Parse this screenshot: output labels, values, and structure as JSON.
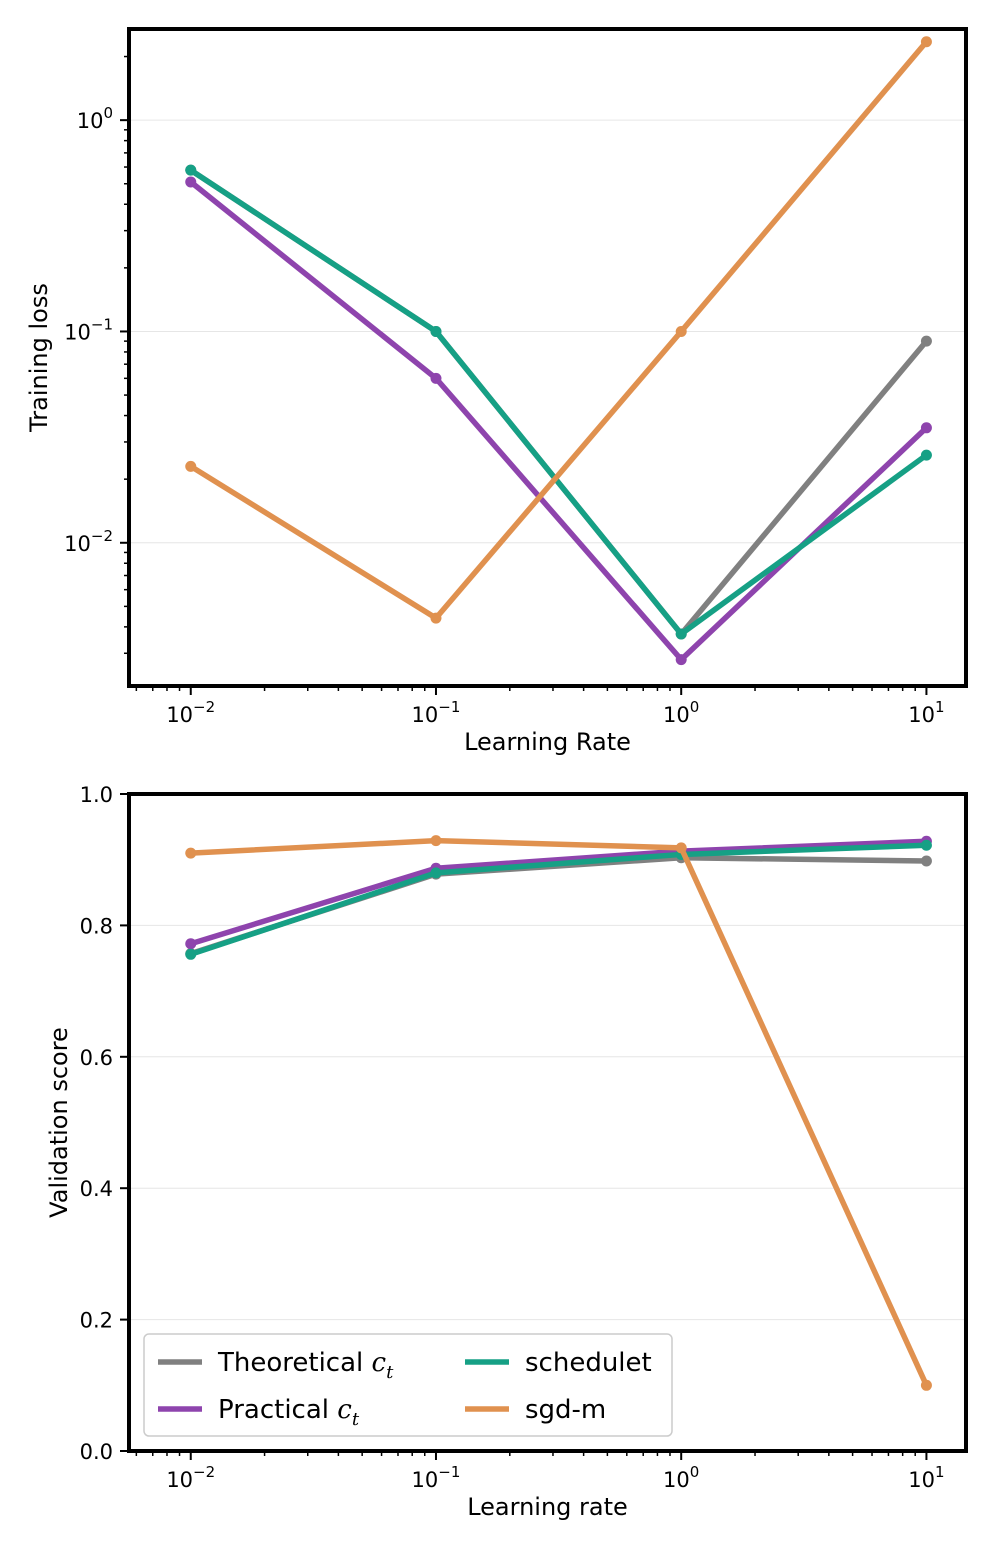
{
  "chart_data": [
    {
      "type": "line",
      "xscale": "log",
      "yscale": "log",
      "xlabel": "Learning Rate",
      "ylabel": "Training loss",
      "x": [
        0.01,
        0.1,
        1,
        10
      ],
      "xlim": [
        0.0056,
        14.5
      ],
      "ylim": [
        0.0021,
        2.7
      ],
      "xticks": [
        {
          "value": 0.01,
          "base": "10",
          "exp": "−2"
        },
        {
          "value": 0.1,
          "base": "10",
          "exp": "−1"
        },
        {
          "value": 1,
          "base": "10",
          "exp": "0"
        },
        {
          "value": 10,
          "base": "10",
          "exp": "1"
        }
      ],
      "yticks": [
        {
          "value": 0.01,
          "base": "10",
          "exp": "−2"
        },
        {
          "value": 0.1,
          "base": "10",
          "exp": "−1"
        },
        {
          "value": 1,
          "base": "10",
          "exp": "0"
        }
      ],
      "grid": "horizontal",
      "series": [
        {
          "name": "Theoretical",
          "color": "#808080",
          "values": [
            0.58,
            0.1,
            0.0037,
            0.09
          ]
        },
        {
          "name": "Practical",
          "color": "#8e44ad",
          "values": [
            0.51,
            0.06,
            0.0028,
            0.035
          ]
        },
        {
          "name": "schedulet",
          "color": "#16a085",
          "values": [
            0.58,
            0.1,
            0.0037,
            0.026
          ]
        },
        {
          "name": "sgd-m",
          "color": "#e0914f",
          "values": [
            0.023,
            0.0044,
            0.1,
            2.35
          ]
        }
      ]
    },
    {
      "type": "line",
      "xscale": "log",
      "yscale": "linear",
      "xlabel": "Learning rate",
      "ylabel": "Validation score",
      "x": [
        0.01,
        0.1,
        1,
        10
      ],
      "xlim": [
        0.0056,
        14.5
      ],
      "ylim": [
        0,
        1
      ],
      "xticks": [
        {
          "value": 0.01,
          "base": "10",
          "exp": "−2"
        },
        {
          "value": 0.1,
          "base": "10",
          "exp": "−1"
        },
        {
          "value": 1,
          "base": "10",
          "exp": "0"
        },
        {
          "value": 10,
          "base": "10",
          "exp": "1"
        }
      ],
      "yticks": [
        {
          "value": 0,
          "label": "0.0"
        },
        {
          "value": 0.2,
          "label": "0.2"
        },
        {
          "value": 0.4,
          "label": "0.4"
        },
        {
          "value": 0.6,
          "label": "0.6"
        },
        {
          "value": 0.8,
          "label": "0.8"
        },
        {
          "value": 1,
          "label": "1.0"
        }
      ],
      "grid": "horizontal",
      "legend": "lower-left",
      "series": [
        {
          "name": "Theoretical",
          "color": "#808080",
          "values": [
            0.757,
            0.878,
            0.903,
            0.898
          ]
        },
        {
          "name": "Practical",
          "color": "#8e44ad",
          "values": [
            0.772,
            0.887,
            0.913,
            0.928
          ]
        },
        {
          "name": "schedulet",
          "color": "#16a085",
          "values": [
            0.756,
            0.88,
            0.908,
            0.922
          ]
        },
        {
          "name": "sgd-m",
          "color": "#e0914f",
          "values": [
            0.91,
            0.929,
            0.918,
            0.1
          ]
        }
      ]
    }
  ],
  "legend": {
    "items": [
      {
        "text": "Theoretical ",
        "math": "c",
        "sub": "t",
        "color": "#808080"
      },
      {
        "text": "Practical ",
        "math": "c",
        "sub": "t",
        "color": "#8e44ad"
      },
      {
        "text": "schedulet",
        "math": "",
        "sub": "",
        "color": "#16a085"
      },
      {
        "text": "sgd-m",
        "math": "",
        "sub": "",
        "color": "#e0914f"
      }
    ]
  }
}
